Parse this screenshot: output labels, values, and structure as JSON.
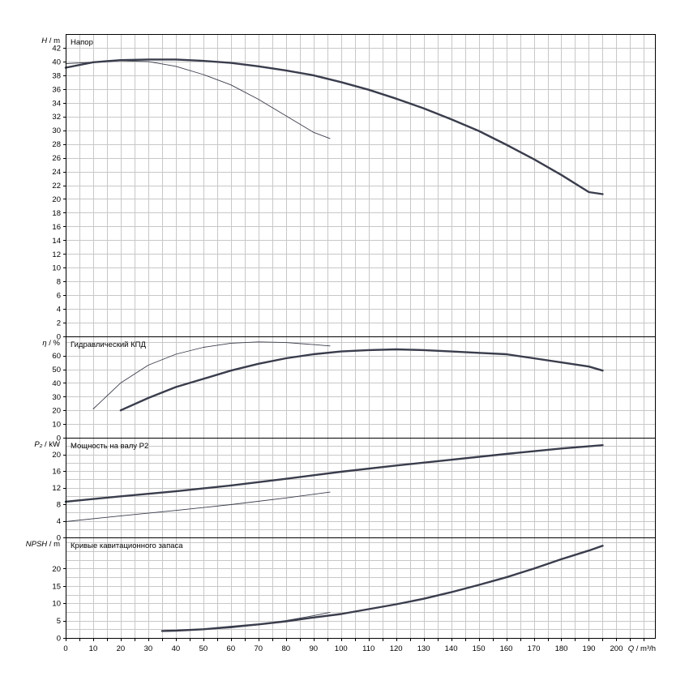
{
  "chart_data": {
    "type": "line",
    "x_axis": {
      "label_symbol": "Q",
      "label_unit": "m³/h",
      "range": [
        0,
        214
      ],
      "tick_step": 10,
      "tick_labels": [
        "0",
        "10",
        "20",
        "30",
        "40",
        "50",
        "60",
        "70",
        "80",
        "90",
        "100",
        "110",
        "120",
        "130",
        "140",
        "150",
        "160",
        "170",
        "180",
        "190",
        "200"
      ]
    },
    "panels": [
      {
        "id": "head",
        "title": "Напор",
        "ylabel_symbol": "H",
        "ylabel_unit": "m",
        "ylim": [
          0,
          44
        ],
        "grid_step": 2,
        "ticks": [
          0,
          2,
          4,
          6,
          8,
          10,
          12,
          14,
          16,
          18,
          20,
          22,
          24,
          26,
          28,
          30,
          32,
          34,
          36,
          38,
          40,
          42
        ],
        "series": [
          {
            "line": "thick",
            "x": [
              0,
              10,
              20,
              30,
              40,
              50,
              60,
              70,
              80,
              90,
              100,
              110,
              120,
              130,
              140,
              150,
              160,
              170,
              180,
              190,
              195
            ],
            "y": [
              39.1,
              39.9,
              40.2,
              40.3,
              40.3,
              40.1,
              39.8,
              39.3,
              38.7,
              38.0,
              37.0,
              35.9,
              34.6,
              33.2,
              31.6,
              29.9,
              27.9,
              25.8,
              23.5,
              21.0,
              20.7
            ]
          },
          {
            "line": "thin",
            "x": [
              0,
              10,
              20,
              30,
              40,
              50,
              60,
              70,
              80,
              90,
              96
            ],
            "y": [
              39.7,
              39.9,
              40.1,
              40.0,
              39.3,
              38.1,
              36.6,
              34.5,
              32.1,
              29.7,
              28.8
            ]
          }
        ]
      },
      {
        "id": "efficiency",
        "title": "Гидравлический КПД",
        "ylabel_symbol": "η",
        "ylabel_unit": "%",
        "ylim": [
          0,
          74
        ],
        "grid_step": 10,
        "ticks": [
          0,
          10,
          20,
          30,
          40,
          50,
          60
        ],
        "series": [
          {
            "line": "thick",
            "x": [
              20,
              30,
              40,
              50,
              60,
              70,
              80,
              90,
              100,
              110,
              120,
              130,
              140,
              150,
              160,
              170,
              180,
              190,
              195
            ],
            "y": [
              20,
              29,
              37,
              43,
              49,
              54,
              58,
              61,
              63,
              64,
              64.5,
              64,
              63,
              62,
              61,
              58,
              55,
              52,
              49
            ]
          },
          {
            "line": "thin",
            "x": [
              10,
              20,
              30,
              40,
              50,
              60,
              70,
              80,
              90,
              96
            ],
            "y": [
              21,
              40,
              53,
              61,
              66,
              69,
              70,
              69.5,
              68,
              67
            ]
          }
        ]
      },
      {
        "id": "power",
        "title": "Мощность на валу P2",
        "ylabel_symbol": "P₂",
        "ylabel_unit": "kW",
        "ylim": [
          0,
          24
        ],
        "grid_step": 2,
        "ticks": [
          0,
          4,
          8,
          12,
          16,
          20
        ],
        "series": [
          {
            "line": "thick",
            "x": [
              0,
              20,
              40,
              60,
              80,
              100,
              120,
              140,
              160,
              180,
              195
            ],
            "y": [
              8.6,
              9.9,
              11.1,
              12.5,
              14.1,
              15.8,
              17.3,
              18.7,
              20.1,
              21.4,
              22.2
            ]
          },
          {
            "line": "thin",
            "x": [
              0,
              20,
              40,
              60,
              80,
              96
            ],
            "y": [
              3.8,
              5.2,
              6.5,
              7.9,
              9.5,
              10.9
            ]
          }
        ]
      },
      {
        "id": "npsh",
        "title": "Кривые кавитационного запаса",
        "ylabel_symbol": "NPSH",
        "ylabel_unit": "m",
        "ylim": [
          0,
          29
        ],
        "grid_step": 2.5,
        "ticks": [
          0,
          5,
          10,
          15,
          20
        ],
        "series": [
          {
            "line": "thick",
            "x": [
              35,
              40,
              50,
              60,
              70,
              80,
              90,
              100,
              110,
              120,
              130,
              140,
              150,
              160,
              170,
              180,
              190,
              195
            ],
            "y": [
              2.0,
              2.1,
              2.5,
              3.2,
              3.9,
              4.8,
              5.9,
              6.9,
              8.3,
              9.7,
              11.3,
              13.2,
              15.3,
              17.5,
              20.0,
              22.7,
              25.2,
              26.6
            ]
          },
          {
            "line": "thin",
            "x": [
              35,
              40,
              50,
              60,
              70,
              80,
              90,
              96
            ],
            "y": [
              1.9,
              2.0,
              2.4,
              2.9,
              3.8,
              5.0,
              6.4,
              7.4
            ]
          }
        ]
      }
    ],
    "colors": {
      "curve": "#3a3d4c",
      "grid": "#c8c8c8",
      "frame": "#000000"
    }
  }
}
